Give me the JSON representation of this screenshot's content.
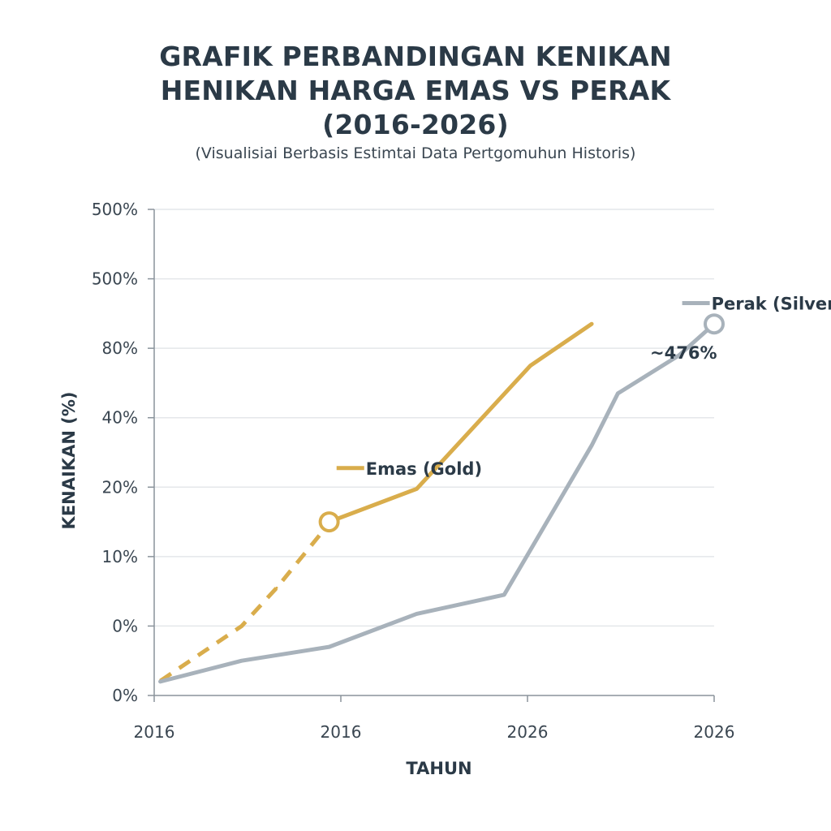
{
  "colors": {
    "gold": "#d9ad4c",
    "silver": "#a8b2bb",
    "grid": "#e4e7ea",
    "axis": "#8a939b",
    "text": "#2b3a47"
  },
  "chart_data": {
    "type": "line",
    "title_lines": [
      "GRAFIK PERBANDINGAN KENIKAN",
      "HENIKAN HARGA EMAS VS PERAK",
      "(2016-2026)"
    ],
    "subtitle": "(Visualisiai Berbasis Estimtai Data Pertgomuhun Historis)",
    "xlabel": "TAHUN",
    "ylabel": "KENAIKAN (%)",
    "x_ticks": [
      "2016",
      "2016",
      "2026",
      "2026"
    ],
    "y_ticks": [
      "0%",
      "0%",
      "10%",
      "20%",
      "40%",
      "80%",
      "500%",
      "500%"
    ],
    "grid": true,
    "series": [
      {
        "name": "Emas (Gold)",
        "color_key": "gold",
        "dashed_segment_end": 3,
        "points": [
          [
            0.07,
            0.42
          ],
          [
            1.0,
            2.0
          ],
          [
            1.4,
            3.1
          ],
          [
            1.95,
            4.8
          ],
          [
            2.0,
            5.0
          ],
          [
            3.0,
            5.95
          ],
          [
            4.3,
            9.5
          ],
          [
            5.0,
            10.7
          ]
        ],
        "marker_index": 4
      },
      {
        "name": "Perak (Silver)",
        "color_key": "silver",
        "dashed_segment_end": 0,
        "points": [
          [
            0.07,
            0.4
          ],
          [
            1.0,
            1.0
          ],
          [
            2.0,
            1.4
          ],
          [
            3.0,
            2.35
          ],
          [
            4.0,
            2.9
          ],
          [
            5.0,
            7.2
          ],
          [
            5.3,
            8.7
          ],
          [
            6.0,
            9.8
          ],
          [
            6.4,
            10.7
          ]
        ],
        "marker_index": 8
      }
    ],
    "annotations": [
      {
        "text": "~476%",
        "x": 6.05,
        "y": 9.7
      }
    ],
    "legend": [
      {
        "text": "Emas (Gold)",
        "color_key": "gold",
        "x": 2.4,
        "y": 6.55
      },
      {
        "text": "Perak (Silver)",
        "color_key": "silver",
        "x": 6.35,
        "y": 11.3
      }
    ]
  }
}
